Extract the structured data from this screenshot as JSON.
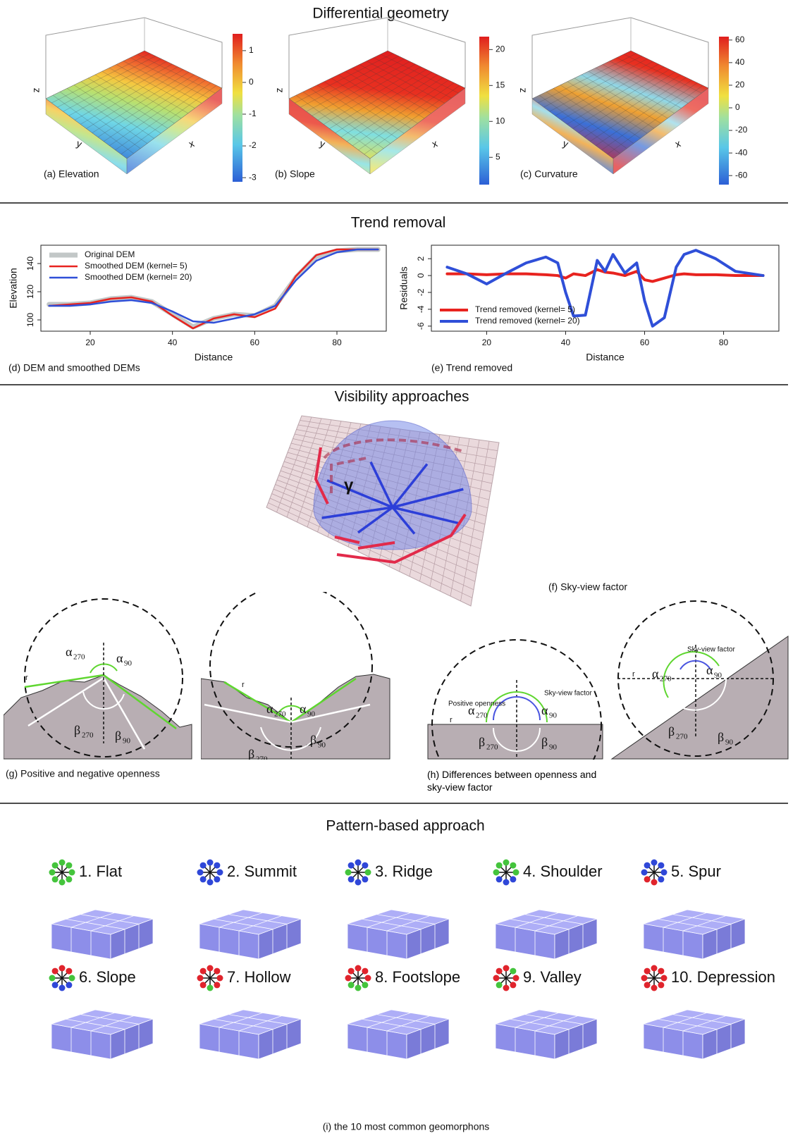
{
  "sections": [
    {
      "title": "Differential geometry"
    },
    {
      "title": "Trend removal"
    },
    {
      "title": "Visibility approaches"
    },
    {
      "title": "Pattern-based approach"
    }
  ],
  "elevation_panels": [
    {
      "caption": "(a) Elevation",
      "axes": [
        "z",
        "y",
        "x"
      ],
      "colorbar": {
        "lim": [
          -3.13,
          1.53
        ],
        "ticks": [
          1,
          0,
          -1,
          -2,
          -3
        ]
      }
    },
    {
      "caption": "(b) Slope",
      "axes": [
        "z",
        "y",
        "x"
      ],
      "colorbar": {
        "lim": [
          1.2,
          21.8
        ],
        "ticks": [
          20,
          15,
          10,
          5
        ]
      }
    },
    {
      "caption": "(c) Curvature",
      "axes": [
        "z",
        "y",
        "x"
      ],
      "colorbar": {
        "lim": [
          -68,
          63
        ],
        "ticks": [
          60,
          40,
          20,
          0,
          -20,
          -40,
          -60
        ]
      }
    }
  ],
  "chart_data": [
    {
      "type": "line",
      "caption": "(d) DEM and smoothed DEMs",
      "xlabel": "Distance",
      "ylabel": "Elevation",
      "x": [
        10,
        15,
        20,
        25,
        30,
        35,
        40,
        45,
        50,
        55,
        60,
        65,
        70,
        75,
        80,
        85,
        90
      ],
      "series": [
        {
          "name": "Original DEM",
          "color": "#c2c7c7",
          "values": [
            111,
            111,
            112,
            115,
            116,
            113,
            104,
            95,
            101,
            104,
            103,
            110,
            130,
            145,
            149,
            150,
            150
          ]
        },
        {
          "name": "Smoothed DEM (kernel= 5)",
          "color": "#e8231f",
          "values": [
            110,
            111,
            112,
            115,
            116,
            113,
            103,
            94,
            101,
            104,
            102,
            108,
            131,
            146,
            150,
            150,
            150
          ]
        },
        {
          "name": "Smoothed DEM (kernel= 20)",
          "color": "#2f4fd8",
          "values": [
            110,
            110,
            111,
            113,
            114,
            112,
            106,
            99,
            98,
            101,
            104,
            110,
            128,
            142,
            148,
            150,
            150
          ]
        }
      ],
      "xlim": [
        8,
        92
      ],
      "ylim": [
        92,
        153
      ],
      "xticks": [
        20,
        40,
        60,
        80
      ],
      "yticks": [
        100,
        120,
        140
      ],
      "legend": "top-left"
    },
    {
      "type": "line",
      "caption": "(e) Trend removed",
      "xlabel": "Distance",
      "ylabel": "Residuals",
      "x": [
        10,
        15,
        20,
        25,
        30,
        35,
        38,
        40,
        42,
        45,
        48,
        50,
        52,
        55,
        58,
        60,
        62,
        65,
        68,
        70,
        73,
        78,
        83,
        90
      ],
      "series": [
        {
          "name": "Trend removed (kernel= 5)",
          "color": "#e8231f",
          "values": [
            0.2,
            0.2,
            0.1,
            0.2,
            0.2,
            0.1,
            0,
            -0.3,
            0.2,
            0,
            0.7,
            0.4,
            0.3,
            0,
            0.5,
            -0.5,
            -0.7,
            -0.3,
            0.1,
            0.2,
            0.1,
            0.1,
            0,
            0
          ]
        },
        {
          "name": "Trend removed (kernel= 20)",
          "color": "#2f4fd8",
          "values": [
            1,
            0.2,
            -1,
            0.3,
            1.5,
            2.2,
            1.5,
            -2,
            -4.8,
            -4.7,
            1.8,
            0.5,
            2.5,
            0.3,
            1.5,
            -3,
            -6,
            -5,
            1,
            2.5,
            3,
            2,
            0.5,
            0
          ]
        }
      ],
      "xlim": [
        6,
        94
      ],
      "ylim": [
        -6.6,
        3.6
      ],
      "xticks": [
        20,
        40,
        60,
        80
      ],
      "yticks": [
        -6,
        -4,
        -2,
        0,
        2
      ],
      "legend": "bottom-left"
    }
  ],
  "sky_view": {
    "caption": "(f) Sky-view factor",
    "angle": "γ"
  },
  "openness": {
    "captions": [
      "(g) Positive and negative openness",
      "(h) Differences between openness and sky-view factor"
    ],
    "alpha": "α",
    "beta": "β",
    "subscripts": [
      "270",
      "90"
    ],
    "radius": "r",
    "positive_openness": "Positive openness",
    "sky_view_factor": "Sky-view factor"
  },
  "geomorphons": {
    "caption": "(i) the 10 most common geomorphons",
    "items": [
      {
        "name": "1. Flat",
        "dots": [
          "#44c43c",
          "#44c43c",
          "#44c43c",
          "#44c43c",
          "#44c43c",
          "#44c43c",
          "#44c43c",
          "#44c43c"
        ]
      },
      {
        "name": "2. Summit",
        "dots": [
          "#2f47d8",
          "#2f47d8",
          "#2f47d8",
          "#2f47d8",
          "#2f47d8",
          "#2f47d8",
          "#2f47d8",
          "#2f47d8"
        ]
      },
      {
        "name": "3. Ridge",
        "dots": [
          "#2f47d8",
          "#2f47d8",
          "#44c43c",
          "#2f47d8",
          "#2f47d8",
          "#2f47d8",
          "#44c43c",
          "#2f47d8"
        ]
      },
      {
        "name": "4. Shoulder",
        "dots": [
          "#44c43c",
          "#44c43c",
          "#44c43c",
          "#2f47d8",
          "#2f47d8",
          "#2f47d8",
          "#44c43c",
          "#44c43c"
        ]
      },
      {
        "name": "5. Spur",
        "dots": [
          "#2f47d8",
          "#2f47d8",
          "#2f47d8",
          "#2f47d8",
          "#e0242c",
          "#e0242c",
          "#2f47d8",
          "#2f47d8"
        ]
      },
      {
        "name": "6. Slope",
        "dots": [
          "#e0242c",
          "#e0242c",
          "#44c43c",
          "#2f47d8",
          "#2f47d8",
          "#2f47d8",
          "#44c43c",
          "#e0242c"
        ]
      },
      {
        "name": "7. Hollow",
        "dots": [
          "#e0242c",
          "#e0242c",
          "#e0242c",
          "#e0242c",
          "#44c43c",
          "#e0242c",
          "#e0242c",
          "#e0242c"
        ]
      },
      {
        "name": "8. Footslope",
        "dots": [
          "#e0242c",
          "#e0242c",
          "#e0242c",
          "#44c43c",
          "#44c43c",
          "#44c43c",
          "#e0242c",
          "#e0242c"
        ]
      },
      {
        "name": "9. Valley",
        "dots": [
          "#e0242c",
          "#44c43c",
          "#e0242c",
          "#e0242c",
          "#e0242c",
          "#44c43c",
          "#e0242c",
          "#e0242c"
        ]
      },
      {
        "name": "10. Depression",
        "dots": [
          "#e0242c",
          "#e0242c",
          "#e0242c",
          "#e0242c",
          "#e0242c",
          "#e0242c",
          "#e0242c",
          "#e0242c"
        ]
      }
    ]
  }
}
